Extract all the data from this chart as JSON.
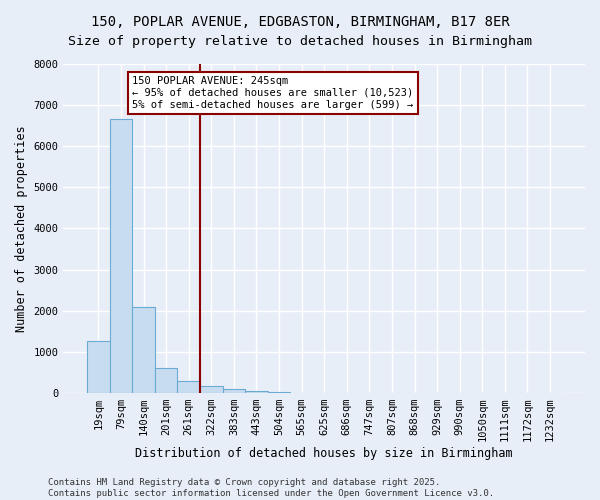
{
  "title_line1": "150, POPLAR AVENUE, EDGBASTON, BIRMINGHAM, B17 8ER",
  "title_line2": "Size of property relative to detached houses in Birmingham",
  "xlabel": "Distribution of detached houses by size in Birmingham",
  "ylabel": "Number of detached properties",
  "categories": [
    "19sqm",
    "79sqm",
    "140sqm",
    "201sqm",
    "261sqm",
    "322sqm",
    "383sqm",
    "443sqm",
    "504sqm",
    "565sqm",
    "625sqm",
    "686sqm",
    "747sqm",
    "807sqm",
    "868sqm",
    "929sqm",
    "990sqm",
    "1050sqm",
    "1111sqm",
    "1172sqm",
    "1232sqm"
  ],
  "values": [
    1250,
    6650,
    2100,
    600,
    300,
    175,
    90,
    40,
    10,
    3,
    2,
    1,
    1,
    0,
    0,
    0,
    0,
    0,
    0,
    0,
    0
  ],
  "bar_color": "#c8dcf0",
  "bar_edge_color": "#6aaad4",
  "vline_x_index": 4.5,
  "vline_color": "#8b0000",
  "annotation_text": "150 POPLAR AVENUE: 245sqm\n← 95% of detached houses are smaller (10,523)\n5% of semi-detached houses are larger (599) →",
  "annotation_box_color": "#ffffff",
  "annotation_box_edge": "#8b0000",
  "ylim": [
    0,
    8000
  ],
  "yticks": [
    0,
    1000,
    2000,
    3000,
    4000,
    5000,
    6000,
    7000,
    8000
  ],
  "footer_line1": "Contains HM Land Registry data © Crown copyright and database right 2025.",
  "footer_line2": "Contains public sector information licensed under the Open Government Licence v3.0.",
  "background_color": "#e8eef8",
  "grid_color": "#ffffff",
  "title_fontsize": 10,
  "axis_fontsize": 8.5,
  "tick_fontsize": 7.5,
  "footer_fontsize": 6.5
}
